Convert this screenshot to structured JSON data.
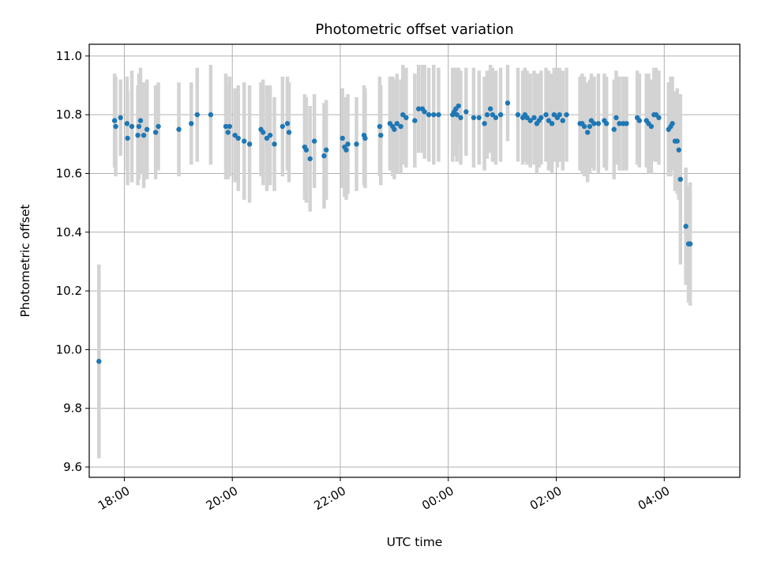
{
  "chart_data": {
    "type": "scatter",
    "title": "Photometric offset variation",
    "xlabel": "UTC time",
    "ylabel": "Photometric offset",
    "grid": true,
    "x_unit": "hours after 17:00 UTC",
    "xlim": [
      0.35,
      12.4
    ],
    "ylim": [
      9.565,
      11.04
    ],
    "x_ticks": [
      {
        "value": 1.0,
        "label": "18:00"
      },
      {
        "value": 3.0,
        "label": "20:00"
      },
      {
        "value": 5.0,
        "label": "22:00"
      },
      {
        "value": 7.0,
        "label": "00:00"
      },
      {
        "value": 9.0,
        "label": "02:00"
      },
      {
        "value": 11.0,
        "label": "04:00"
      }
    ],
    "y_ticks": [
      {
        "value": 9.6,
        "label": "9.6"
      },
      {
        "value": 9.8,
        "label": "9.8"
      },
      {
        "value": 10.0,
        "label": "10.0"
      },
      {
        "value": 10.2,
        "label": "10.2"
      },
      {
        "value": 10.4,
        "label": "10.4"
      },
      {
        "value": 10.6,
        "label": "10.6"
      },
      {
        "value": 10.8,
        "label": "10.8"
      },
      {
        "value": 11.0,
        "label": "11.0"
      }
    ],
    "colors": {
      "point": "#1f77b4",
      "errorbar": "#d3d3d3",
      "grid": "#b0b0b0"
    },
    "series": [
      {
        "name": "offset",
        "points": [
          [
            0.53,
            9.96,
            0.33
          ],
          [
            0.82,
            10.78,
            0.16
          ],
          [
            0.84,
            10.76,
            0.17
          ],
          [
            0.93,
            10.79,
            0.13
          ],
          [
            1.05,
            10.77,
            0.16
          ],
          [
            1.06,
            10.72,
            0.16
          ],
          [
            1.14,
            10.76,
            0.19
          ],
          [
            1.25,
            10.73,
            0.17
          ],
          [
            1.27,
            10.76,
            0.18
          ],
          [
            1.3,
            10.78,
            0.18
          ],
          [
            1.36,
            10.73,
            0.18
          ],
          [
            1.42,
            10.75,
            0.17
          ],
          [
            1.58,
            10.74,
            0.16
          ],
          [
            1.63,
            10.76,
            0.15
          ],
          [
            2.01,
            10.75,
            0.16
          ],
          [
            2.24,
            10.77,
            0.14
          ],
          [
            2.35,
            10.8,
            0.16
          ],
          [
            2.6,
            10.8,
            0.17
          ],
          [
            2.88,
            10.76,
            0.18
          ],
          [
            2.92,
            10.74,
            0.16
          ],
          [
            2.95,
            10.76,
            0.17
          ],
          [
            3.05,
            10.73,
            0.16
          ],
          [
            3.11,
            10.72,
            0.18
          ],
          [
            3.22,
            10.71,
            0.2
          ],
          [
            3.32,
            10.7,
            0.2
          ],
          [
            3.53,
            10.75,
            0.16
          ],
          [
            3.57,
            10.74,
            0.18
          ],
          [
            3.64,
            10.72,
            0.18
          ],
          [
            3.7,
            10.73,
            0.17
          ],
          [
            3.78,
            10.7,
            0.16
          ],
          [
            3.93,
            10.76,
            0.17
          ],
          [
            4.02,
            10.77,
            0.16
          ],
          [
            4.05,
            10.74,
            0.17
          ],
          [
            4.34,
            10.69,
            0.18
          ],
          [
            4.37,
            10.68,
            0.18
          ],
          [
            4.44,
            10.65,
            0.18
          ],
          [
            4.52,
            10.71,
            0.16
          ],
          [
            4.7,
            10.66,
            0.18
          ],
          [
            4.74,
            10.68,
            0.17
          ],
          [
            5.04,
            10.72,
            0.17
          ],
          [
            5.08,
            10.69,
            0.17
          ],
          [
            5.11,
            10.68,
            0.17
          ],
          [
            5.14,
            10.7,
            0.17
          ],
          [
            5.3,
            10.7,
            0.16
          ],
          [
            5.44,
            10.73,
            0.17
          ],
          [
            5.46,
            10.72,
            0.17
          ],
          [
            5.73,
            10.76,
            0.17
          ],
          [
            5.75,
            10.73,
            0.17
          ],
          [
            5.92,
            10.77,
            0.16
          ],
          [
            5.97,
            10.76,
            0.17
          ],
          [
            6.0,
            10.75,
            0.17
          ],
          [
            6.05,
            10.77,
            0.17
          ],
          [
            6.12,
            10.76,
            0.16
          ],
          [
            6.16,
            10.8,
            0.17
          ],
          [
            6.22,
            10.79,
            0.17
          ],
          [
            6.38,
            10.78,
            0.16
          ],
          [
            6.45,
            10.82,
            0.15
          ],
          [
            6.52,
            10.82,
            0.15
          ],
          [
            6.56,
            10.81,
            0.16
          ],
          [
            6.64,
            10.8,
            0.16
          ],
          [
            6.73,
            10.8,
            0.17
          ],
          [
            6.82,
            10.8,
            0.16
          ],
          [
            7.08,
            10.8,
            0.16
          ],
          [
            7.11,
            10.81,
            0.15
          ],
          [
            7.14,
            10.82,
            0.14
          ],
          [
            7.16,
            10.8,
            0.16
          ],
          [
            7.19,
            10.83,
            0.13
          ],
          [
            7.23,
            10.79,
            0.16
          ],
          [
            7.33,
            10.81,
            0.15
          ],
          [
            7.47,
            10.79,
            0.17
          ],
          [
            7.57,
            10.79,
            0.16
          ],
          [
            7.67,
            10.77,
            0.16
          ],
          [
            7.72,
            10.8,
            0.15
          ],
          [
            7.78,
            10.82,
            0.15
          ],
          [
            7.82,
            10.8,
            0.16
          ],
          [
            7.88,
            10.79,
            0.16
          ],
          [
            7.97,
            10.8,
            0.16
          ],
          [
            8.1,
            10.84,
            0.13
          ],
          [
            8.29,
            10.8,
            0.16
          ],
          [
            8.38,
            10.79,
            0.16
          ],
          [
            8.42,
            10.8,
            0.16
          ],
          [
            8.46,
            10.79,
            0.16
          ],
          [
            8.52,
            10.78,
            0.16
          ],
          [
            8.59,
            10.79,
            0.16
          ],
          [
            8.64,
            10.77,
            0.17
          ],
          [
            8.68,
            10.78,
            0.16
          ],
          [
            8.72,
            10.79,
            0.16
          ],
          [
            8.81,
            10.8,
            0.16
          ],
          [
            8.86,
            10.78,
            0.17
          ],
          [
            8.92,
            10.77,
            0.17
          ],
          [
            8.96,
            10.8,
            0.16
          ],
          [
            9.02,
            10.79,
            0.17
          ],
          [
            9.06,
            10.8,
            0.16
          ],
          [
            9.12,
            10.78,
            0.17
          ],
          [
            9.19,
            10.8,
            0.16
          ],
          [
            9.44,
            10.77,
            0.16
          ],
          [
            9.48,
            10.77,
            0.17
          ],
          [
            9.52,
            10.76,
            0.17
          ],
          [
            9.58,
            10.74,
            0.17
          ],
          [
            9.62,
            10.76,
            0.16
          ],
          [
            9.65,
            10.78,
            0.16
          ],
          [
            9.7,
            10.77,
            0.16
          ],
          [
            9.78,
            10.77,
            0.17
          ],
          [
            9.89,
            10.78,
            0.16
          ],
          [
            9.93,
            10.77,
            0.16
          ],
          [
            10.07,
            10.75,
            0.17
          ],
          [
            10.11,
            10.79,
            0.16
          ],
          [
            10.17,
            10.77,
            0.16
          ],
          [
            10.24,
            10.77,
            0.16
          ],
          [
            10.3,
            10.77,
            0.16
          ],
          [
            10.5,
            10.79,
            0.16
          ],
          [
            10.54,
            10.78,
            0.16
          ],
          [
            10.67,
            10.78,
            0.16
          ],
          [
            10.71,
            10.77,
            0.17
          ],
          [
            10.76,
            10.76,
            0.16
          ],
          [
            10.81,
            10.8,
            0.16
          ],
          [
            10.85,
            10.8,
            0.16
          ],
          [
            10.9,
            10.79,
            0.16
          ],
          [
            11.08,
            10.75,
            0.16
          ],
          [
            11.12,
            10.76,
            0.17
          ],
          [
            11.15,
            10.77,
            0.16
          ],
          [
            11.2,
            10.71,
            0.17
          ],
          [
            11.24,
            10.71,
            0.18
          ],
          [
            11.27,
            10.68,
            0.17
          ],
          [
            11.3,
            10.58,
            0.29
          ],
          [
            11.4,
            10.42,
            0.2
          ],
          [
            11.45,
            10.36,
            0.2
          ],
          [
            11.48,
            10.36,
            0.21
          ]
        ]
      }
    ]
  }
}
